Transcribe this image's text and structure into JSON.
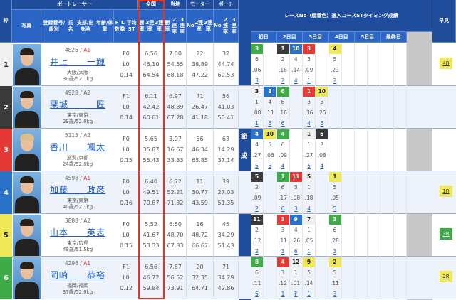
{
  "header": {
    "boat_racer": "ボートレーサー",
    "frame": "枠",
    "photo": "写真",
    "racer_info": [
      "登録番号/級別",
      "氏名",
      "支部/出身地",
      "年齢/体重"
    ],
    "fl": [
      "F数",
      "L数",
      "平均ST"
    ],
    "national": {
      "title": "全国",
      "sub": [
        "勝率",
        "2連率",
        "3連率"
      ]
    },
    "local": {
      "title": "当地",
      "sub": [
        "勝率",
        "2連率",
        "3連率"
      ]
    },
    "motor": {
      "title": "モーター",
      "sub": [
        "No",
        "2連率",
        "3連率"
      ]
    },
    "boat": {
      "title": "ボート",
      "sub": [
        "No",
        "2連率",
        "3連率"
      ]
    },
    "series": [
      "レースNo（艇番色）",
      "進入コース",
      "STタイミング",
      "成績"
    ],
    "days": [
      "初日",
      "2日目",
      "3日目",
      "4日目",
      "5日目",
      "最終日"
    ],
    "hayami": "早見",
    "side_label": [
      "今",
      "節",
      "成",
      "績"
    ]
  },
  "colors": {
    "frame": {
      "1": "#f0f0f0",
      "2": "#3a3a3a",
      "3": "#e53935",
      "4": "#2a72c8",
      "5": "#efe95a",
      "6": "#3faa48"
    },
    "accent_box": "#e8321f",
    "header": "#1f4d9c"
  },
  "rows": [
    {
      "frame": "1",
      "reg": "4826",
      "cls": "A1",
      "name": "井上　　一輝",
      "branch": "大阪/大阪",
      "age_weight": "30歳/52.1kg",
      "f": "F0",
      "l": "L0",
      "st": "0.14",
      "national": [
        "6.56",
        "46.10",
        "64.54"
      ],
      "local": [
        "7.00",
        "54.55",
        "68.18"
      ],
      "motor": [
        "22",
        "38.89",
        "47.22"
      ],
      "boat": [
        "32",
        "44.74",
        "60.53"
      ],
      "races": [
        {
          "no": "3",
          "c": "6"
        },
        null,
        {
          "no": "1",
          "c": "2"
        },
        {
          "no": "10",
          "c": "4"
        },
        {
          "no": "3",
          "c": "3"
        },
        null,
        {
          "no": "4",
          "c": "5"
        }
      ],
      "course": [
        "6",
        "",
        "2",
        "4",
        "3",
        "",
        "5"
      ],
      "st_t": [
        ".06",
        "",
        ".18",
        ".14",
        ".09",
        "",
        ".23"
      ],
      "result": [
        "3",
        "",
        "2",
        "4",
        "1",
        "",
        "2"
      ],
      "hayami": {
        "label": "4R",
        "c": "5"
      }
    },
    {
      "frame": "2",
      "reg": "4928",
      "cls": "A2",
      "name": "栗城　　　匠",
      "branch": "東京/東京",
      "age_weight": "29歳/52.0kg",
      "f": "F1",
      "l": "L0",
      "st": "0.14",
      "national": [
        "6.11",
        "42.42",
        "60.61"
      ],
      "local": [
        "6.97",
        "48.89",
        "67.78"
      ],
      "motor": [
        "41",
        "26.47",
        "41.18"
      ],
      "boat": [
        "56",
        "41.03",
        "56.41"
      ],
      "races": [
        {
          "no": "3",
          "c": "1"
        },
        {
          "no": "8",
          "c": "4"
        },
        {
          "no": "6",
          "c": "6"
        },
        null,
        {
          "no": "1",
          "c": "3"
        },
        {
          "no": "10",
          "c": "5"
        }
      ],
      "course": [
        "1",
        "4",
        "6",
        "",
        "3",
        "5"
      ],
      "st_t": [
        ".08",
        ".11",
        ".16",
        "",
        ".16",
        ".25"
      ],
      "result": [
        "1",
        "6",
        "6",
        "",
        "4",
        "6"
      ],
      "hayami": null
    },
    {
      "frame": "3",
      "reg": "5115",
      "cls": "A2",
      "name": "香川　　颯太",
      "branch": "滋賀/京都",
      "age_weight": "24歳/52.0kg",
      "f": "F0",
      "l": "L0",
      "st": "0.15",
      "national": [
        "5.65",
        "35.87",
        "55.43"
      ],
      "local": [
        "3.97",
        "16.67",
        "33.33"
      ],
      "motor": [
        "56",
        "46.34",
        "65.85"
      ],
      "boat": [
        "63",
        "14.29",
        "37.14"
      ],
      "races": [
        {
          "no": "4",
          "c": "4"
        },
        {
          "no": "10",
          "c": "5"
        },
        {
          "no": "4",
          "c": "6"
        },
        null,
        {
          "no": "1",
          "c": "1"
        },
        {
          "no": "6",
          "c": "2"
        }
      ],
      "course": [
        "4",
        "5",
        "6",
        "",
        "1",
        "2"
      ],
      "st_t": [
        ".27",
        ".06",
        ".09",
        "",
        ".27",
        ".08"
      ],
      "result": [
        "5",
        "5",
        "4",
        "",
        "5",
        "4"
      ],
      "hayami": null
    },
    {
      "frame": "4",
      "reg": "4598",
      "cls": "A1",
      "name": "加藤　　政彦",
      "branch": "東京/東京",
      "age_weight": "40歳/52.1kg",
      "f": "F0",
      "l": "L0",
      "st": "0.16",
      "national": [
        "6.40",
        "49.51",
        "70.87"
      ],
      "local": [
        "6.72",
        "52.21",
        "71.32"
      ],
      "motor": [
        "11",
        "30.77",
        "43.59"
      ],
      "boat": [
        "39",
        "27.03",
        "51.35"
      ],
      "races": [
        {
          "no": "5",
          "c": "2"
        },
        null,
        {
          "no": "1",
          "c": "6"
        },
        {
          "no": "11",
          "c": "3"
        },
        {
          "no": "5",
          "c": "1"
        },
        null,
        {
          "no": "1",
          "c": "5"
        }
      ],
      "course": [
        "2",
        "",
        "6",
        "3",
        "1",
        "",
        "5"
      ],
      "st_t": [
        ".09",
        "",
        ".17",
        ".08",
        ".18",
        "",
        ".05"
      ],
      "result": [
        "2",
        "",
        "6",
        "3",
        "4",
        "",
        "5"
      ],
      "hayami": {
        "label": "1R",
        "c": "5"
      }
    },
    {
      "frame": "5",
      "reg": "3888",
      "cls": "A2",
      "name": "山本　　英志",
      "branch": "東京/広島",
      "age_weight": "49歳/51.5kg",
      "f": "F0",
      "l": "L0",
      "st": "0.15",
      "national": [
        "5.52",
        "41.67",
        "53.33"
      ],
      "local": [
        "6.50",
        "48.70",
        "67.83"
      ],
      "motor": [
        "16",
        "48.72",
        "66.67"
      ],
      "boat": [
        "45",
        "34.29",
        "51.43"
      ],
      "races": [
        {
          "no": "11",
          "c": "2"
        },
        null,
        {
          "no": "3",
          "c": "3"
        },
        {
          "no": "9",
          "c": "4"
        },
        {
          "no": "7",
          "c": "1"
        },
        null,
        {
          "no": "3",
          "c": "6"
        }
      ],
      "course": [
        "2",
        "",
        "3",
        "4",
        "1",
        "",
        "6"
      ],
      "st_t": [
        ".12",
        "",
        ".11",
        ".26",
        ".05",
        "",
        ".28"
      ],
      "result": [
        "2",
        "",
        "3",
        "6",
        "1",
        "",
        "3"
      ],
      "hayami": {
        "label": "3R",
        "c": "6"
      }
    },
    {
      "frame": "6",
      "reg": "4296",
      "cls": "A1",
      "name": "岡崎　　恭裕",
      "branch": "福岡/福岡",
      "age_weight": "37歳/52.0kg",
      "f": "F1",
      "l": "L0",
      "st": "0.12",
      "national": [
        "6.56",
        "46.72",
        "59.84"
      ],
      "local": [
        "7.87",
        "56.52",
        "73.91"
      ],
      "motor": [
        "20",
        "32.35",
        "64.71"
      ],
      "boat": [
        "71",
        "34.29",
        "42.86"
      ],
      "races": [
        {
          "no": "8",
          "c": "6"
        },
        null,
        {
          "no": "4",
          "c": "3"
        },
        {
          "no": "12",
          "c": "1"
        },
        {
          "no": "9",
          "c": "5"
        },
        null,
        {
          "no": "2",
          "c": "5"
        }
      ],
      "course": [
        "6",
        "",
        "3",
        "1",
        "5",
        "",
        "5"
      ],
      "st_t": [
        ".11",
        "",
        ".12",
        ".01",
        ".14",
        "",
        ".11"
      ],
      "result": [
        "5",
        "",
        "1",
        "F",
        "1",
        "",
        "3"
      ],
      "hayami": {
        "label": "2R",
        "c": "5"
      }
    }
  ]
}
